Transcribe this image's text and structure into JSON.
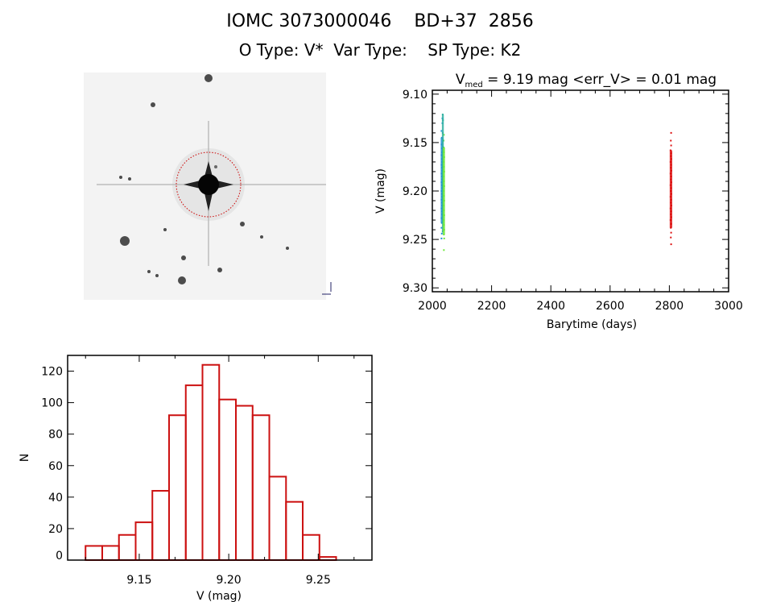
{
  "header": {
    "title": "IOMC 3073000046    BD+37  2856",
    "subtitle": "O Type: V*  Var Type:    SP Type: K2"
  },
  "chart_data": [
    {
      "type": "image",
      "description_label": "finder image",
      "colors": {
        "background": "#f2f2f2",
        "stars": "#111111",
        "aperture_circle": "#cc0000"
      }
    },
    {
      "type": "scatter",
      "title_prefix": "V",
      "title_sub": "med",
      "title_rest": " = 9.19 mag <err_V> = 0.01 mag",
      "xlabel": "Barytime (days)",
      "ylabel": "V (mag)",
      "xlim": [
        2000,
        3000
      ],
      "ylim": [
        9.096,
        9.304
      ],
      "y_reversed": true,
      "xticks": [
        "2000",
        "2200",
        "2400",
        "2600",
        "2800",
        "3000"
      ],
      "yticks": [
        "9.10",
        "9.15",
        "9.20",
        "9.25",
        "9.30"
      ],
      "grid": false,
      "series": [
        {
          "color": "#1f8fd8",
          "points": [
            [
              2031,
              9.138
            ],
            [
              2032,
              9.145
            ],
            [
              2031,
              9.152
            ],
            [
              2032,
              9.156
            ],
            [
              2033,
              9.16
            ],
            [
              2031,
              9.163
            ],
            [
              2032,
              9.167
            ],
            [
              2033,
              9.17
            ],
            [
              2031,
              9.173
            ],
            [
              2032,
              9.176
            ],
            [
              2033,
              9.179
            ],
            [
              2031,
              9.182
            ],
            [
              2032,
              9.185
            ],
            [
              2033,
              9.188
            ],
            [
              2031,
              9.191
            ],
            [
              2032,
              9.194
            ],
            [
              2033,
              9.197
            ],
            [
              2031,
              9.2
            ],
            [
              2032,
              9.203
            ],
            [
              2033,
              9.206
            ],
            [
              2031,
              9.209
            ],
            [
              2032,
              9.212
            ],
            [
              2033,
              9.215
            ],
            [
              2031,
              9.218
            ],
            [
              2032,
              9.221
            ],
            [
              2033,
              9.224
            ],
            [
              2031,
              9.228
            ],
            [
              2032,
              9.233
            ],
            [
              2031,
              9.238
            ],
            [
              2032,
              9.244
            ],
            [
              2031,
              9.249
            ],
            [
              2034,
              9.125
            ],
            [
              2034,
              9.13
            ]
          ]
        },
        {
          "color": "#2fb0a0",
          "points": [
            [
              2035,
              9.121
            ],
            [
              2036,
              9.127
            ],
            [
              2035,
              9.14
            ],
            [
              2036,
              9.158
            ],
            [
              2035,
              9.175
            ],
            [
              2036,
              9.195
            ],
            [
              2035,
              9.215
            ],
            [
              2036,
              9.232
            ],
            [
              2035,
              9.242
            ]
          ]
        },
        {
          "color": "#6ee83a",
          "points": [
            [
              2038,
              9.155
            ],
            [
              2039,
              9.16
            ],
            [
              2040,
              9.165
            ],
            [
              2038,
              9.17
            ],
            [
              2039,
              9.175
            ],
            [
              2040,
              9.18
            ],
            [
              2038,
              9.185
            ],
            [
              2039,
              9.19
            ],
            [
              2040,
              9.195
            ],
            [
              2038,
              9.2
            ],
            [
              2039,
              9.205
            ],
            [
              2040,
              9.21
            ],
            [
              2038,
              9.215
            ],
            [
              2039,
              9.22
            ],
            [
              2040,
              9.225
            ],
            [
              2038,
              9.23
            ],
            [
              2039,
              9.235
            ],
            [
              2040,
              9.24
            ],
            [
              2039,
              9.245
            ],
            [
              2040,
              9.249
            ],
            [
              2039,
              9.261
            ],
            [
              2038,
              9.148
            ],
            [
              2039,
              9.142
            ]
          ]
        },
        {
          "color": "#dd1111",
          "points": [
            [
              2806,
              9.14
            ],
            [
              2805,
              9.148
            ],
            [
              2806,
              9.153
            ],
            [
              2804,
              9.158
            ],
            [
              2806,
              9.161
            ],
            [
              2805,
              9.164
            ],
            [
              2807,
              9.167
            ],
            [
              2804,
              9.17
            ],
            [
              2806,
              9.173
            ],
            [
              2805,
              9.176
            ],
            [
              2807,
              9.179
            ],
            [
              2804,
              9.182
            ],
            [
              2806,
              9.185
            ],
            [
              2805,
              9.188
            ],
            [
              2807,
              9.191
            ],
            [
              2804,
              9.194
            ],
            [
              2806,
              9.197
            ],
            [
              2805,
              9.2
            ],
            [
              2807,
              9.203
            ],
            [
              2804,
              9.206
            ],
            [
              2806,
              9.209
            ],
            [
              2805,
              9.212
            ],
            [
              2807,
              9.215
            ],
            [
              2804,
              9.218
            ],
            [
              2806,
              9.221
            ],
            [
              2805,
              9.224
            ],
            [
              2807,
              9.227
            ],
            [
              2804,
              9.23
            ],
            [
              2806,
              9.234
            ],
            [
              2805,
              9.238
            ],
            [
              2806,
              9.243
            ],
            [
              2805,
              9.248
            ],
            [
              2806,
              9.255
            ]
          ]
        }
      ]
    },
    {
      "type": "bar",
      "histogram": true,
      "xlabel": "V (mag)",
      "ylabel": "N",
      "xlim": [
        9.11,
        9.28
      ],
      "ylim": [
        0,
        130
      ],
      "xticks": [
        "9.15",
        "9.20",
        "9.25"
      ],
      "yticks": [
        "0",
        "20",
        "40",
        "60",
        "80",
        "100",
        "120"
      ],
      "bin_start": 9.12,
      "bin_end": 9.26,
      "counts": [
        9,
        9,
        16,
        24,
        44,
        92,
        111,
        124,
        102,
        98,
        92,
        53,
        37,
        16,
        2
      ],
      "bar_color": "#cc1111",
      "grid": false
    }
  ]
}
